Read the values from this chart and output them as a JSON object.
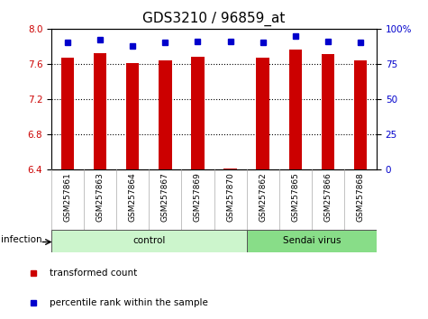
{
  "title": "GDS3210 / 96859_at",
  "samples": [
    "GSM257861",
    "GSM257863",
    "GSM257864",
    "GSM257867",
    "GSM257869",
    "GSM257870",
    "GSM257862",
    "GSM257865",
    "GSM257866",
    "GSM257868"
  ],
  "red_values": [
    7.67,
    7.72,
    7.61,
    7.64,
    7.68,
    6.41,
    7.67,
    7.76,
    7.71,
    7.64
  ],
  "blue_values": [
    90,
    92,
    88,
    90,
    91,
    91,
    90,
    95,
    91,
    90
  ],
  "ylim_left": [
    6.4,
    8.0
  ],
  "ylim_right": [
    0,
    100
  ],
  "yticks_left": [
    6.4,
    6.8,
    7.2,
    7.6,
    8.0
  ],
  "yticks_right": [
    0,
    25,
    50,
    75,
    100
  ],
  "ytick_labels_right": [
    "0",
    "25",
    "50",
    "75",
    "100%"
  ],
  "groups": [
    {
      "label": "control",
      "start": 0,
      "end": 6,
      "color": "#ccf5cc"
    },
    {
      "label": "Sendai virus",
      "start": 6,
      "end": 10,
      "color": "#88dd88"
    }
  ],
  "group_factor": "infection",
  "legend_items": [
    {
      "label": "transformed count",
      "color": "#cc0000",
      "marker": "s"
    },
    {
      "label": "percentile rank within the sample",
      "color": "#0000cc",
      "marker": "s"
    }
  ],
  "bar_color": "#cc0000",
  "dot_color": "#0000cc",
  "title_fontsize": 11,
  "tick_color_left": "#cc0000",
  "tick_color_right": "#0000cc",
  "background_color": "#ffffff",
  "plot_bg_color": "#ffffff",
  "grid_color": "#000000",
  "bar_bottom": 6.4
}
